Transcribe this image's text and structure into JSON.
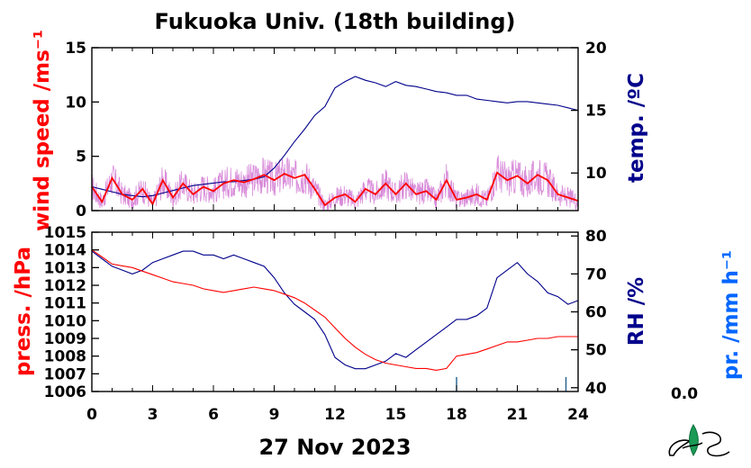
{
  "title": "Fukuoka Univ. (18th building)",
  "date_label": "27 Nov 2023",
  "precip_value": "0.0",
  "colors": {
    "wind": "#ff0000",
    "wind_raw": "#cc66cc",
    "temp": "#00008b",
    "pressure": "#ff0000",
    "rh": "#00008b",
    "precip": "#0066ff"
  },
  "chart_data": [
    {
      "type": "line",
      "x_ticks": [
        "0",
        "3",
        "6",
        "9",
        "12",
        "15",
        "18",
        "21",
        "24"
      ],
      "xlim": [
        0,
        24
      ],
      "left_axis": {
        "label": "wind speed /ms⁻¹",
        "ylim": [
          0,
          15
        ],
        "ticks": [
          "0",
          "5",
          "10",
          "15"
        ]
      },
      "right_axis": {
        "label": "temp. /ºC",
        "ylim": [
          7,
          20
        ],
        "ticks": [
          "10",
          "15",
          "20"
        ]
      },
      "series": [
        {
          "axis": "left",
          "x": [
            0,
            0.5,
            1,
            1.5,
            2,
            2.5,
            3,
            3.5,
            4,
            4.5,
            5,
            5.5,
            6,
            6.5,
            7,
            7.5,
            8,
            8.5,
            9,
            9.5,
            10,
            10.5,
            11,
            11.5,
            12,
            12.5,
            13,
            13.5,
            14,
            14.5,
            15,
            15.5,
            16,
            16.5,
            17,
            17.5,
            18,
            18.5,
            19,
            19.5,
            20,
            20.5,
            21,
            21.5,
            22,
            22.5,
            23,
            23.5,
            24
          ],
          "values": [
            2.2,
            0.8,
            3.0,
            1.5,
            1.0,
            2.0,
            0.6,
            2.8,
            1.2,
            2.5,
            1.5,
            2.2,
            1.8,
            2.5,
            2.8,
            2.6,
            2.9,
            3.3,
            2.8,
            3.4,
            3.0,
            3.3,
            2.0,
            0.5,
            1.2,
            1.5,
            0.8,
            2.0,
            1.5,
            2.5,
            1.5,
            2.5,
            1.5,
            1.8,
            1.0,
            2.8,
            1.0,
            1.2,
            1.5,
            1.0,
            3.5,
            2.8,
            3.2,
            2.5,
            3.3,
            2.8,
            1.5,
            1.2,
            0.9
          ]
        },
        {
          "axis": "right",
          "x": [
            0,
            0.5,
            1,
            1.5,
            2,
            2.5,
            3,
            3.5,
            4,
            4.5,
            5,
            5.5,
            6,
            6.5,
            7,
            7.5,
            8,
            8.5,
            9,
            9.5,
            10,
            10.5,
            11,
            11.5,
            12,
            12.5,
            13,
            13.5,
            14,
            14.5,
            15,
            15.5,
            16,
            16.5,
            17,
            17.5,
            18,
            18.5,
            19,
            19.5,
            20,
            20.5,
            21,
            21.5,
            22,
            22.5,
            23,
            23.5,
            24
          ],
          "values": [
            8.9,
            8.7,
            8.5,
            8.3,
            8.2,
            8.1,
            8.2,
            8.4,
            8.6,
            8.8,
            9.0,
            9.1,
            9.2,
            9.3,
            9.3,
            9.4,
            9.5,
            9.7,
            10.4,
            11.4,
            12.5,
            13.5,
            14.6,
            15.3,
            16.8,
            17.3,
            17.7,
            17.4,
            17.2,
            16.9,
            17.3,
            17.0,
            16.9,
            16.7,
            16.5,
            16.4,
            16.2,
            16.2,
            15.9,
            15.8,
            15.7,
            15.6,
            15.7,
            15.7,
            15.6,
            15.5,
            15.4,
            15.2,
            15.0
          ]
        }
      ]
    },
    {
      "type": "line",
      "x_ticks": [
        "0",
        "3",
        "6",
        "9",
        "12",
        "15",
        "18",
        "21",
        "24"
      ],
      "xlim": [
        0,
        24
      ],
      "left_axis": {
        "label": "press. /hPa",
        "ylim": [
          1006,
          1015
        ],
        "ticks": [
          "1006",
          "1007",
          "1008",
          "1009",
          "1010",
          "1011",
          "1012",
          "1013",
          "1014",
          "1015"
        ]
      },
      "right_axis": {
        "label": "RH /%",
        "ylim": [
          39,
          81
        ],
        "ticks": [
          "40",
          "50",
          "60",
          "70",
          "80"
        ]
      },
      "precip_axis": {
        "label": "pr. /mm h⁻¹"
      },
      "series": [
        {
          "axis": "left",
          "x": [
            0,
            0.5,
            1,
            1.5,
            2,
            2.5,
            3,
            3.5,
            4,
            4.5,
            5,
            5.5,
            6,
            6.5,
            7,
            7.5,
            8,
            8.5,
            9,
            9.5,
            10,
            10.5,
            11,
            11.5,
            12,
            12.5,
            13,
            13.5,
            14,
            14.5,
            15,
            15.5,
            16,
            16.5,
            17,
            17.5,
            18,
            18.5,
            19,
            19.5,
            20,
            20.5,
            21,
            21.5,
            22,
            22.5,
            23,
            23.5,
            24
          ],
          "values": [
            1014.0,
            1013.6,
            1013.2,
            1013.1,
            1013.0,
            1012.8,
            1012.6,
            1012.4,
            1012.2,
            1012.1,
            1012.0,
            1011.8,
            1011.7,
            1011.6,
            1011.7,
            1011.8,
            1011.9,
            1011.8,
            1011.7,
            1011.5,
            1011.3,
            1011.0,
            1010.6,
            1010.2,
            1009.6,
            1009.0,
            1008.5,
            1008.1,
            1007.8,
            1007.6,
            1007.5,
            1007.4,
            1007.3,
            1007.3,
            1007.2,
            1007.3,
            1008.0,
            1008.1,
            1008.2,
            1008.4,
            1008.6,
            1008.8,
            1008.8,
            1008.9,
            1009.0,
            1009.0,
            1009.1,
            1009.1,
            1009.1
          ]
        },
        {
          "axis": "right",
          "x": [
            0,
            0.5,
            1,
            1.5,
            2,
            2.5,
            3,
            3.5,
            4,
            4.5,
            5,
            5.5,
            6,
            6.5,
            7,
            7.5,
            8,
            8.5,
            9,
            9.5,
            10,
            10.5,
            11,
            11.5,
            12,
            12.5,
            13,
            13.5,
            14,
            14.5,
            15,
            15.5,
            16,
            16.5,
            17,
            17.5,
            18,
            18.5,
            19,
            19.5,
            20,
            20.5,
            21,
            21.5,
            22,
            22.5,
            23,
            23.5,
            24
          ],
          "values": [
            76,
            74,
            72,
            71,
            70,
            71,
            73,
            74,
            75,
            76,
            76,
            75,
            75,
            74,
            75,
            74,
            73,
            72,
            69,
            65,
            62,
            60,
            58,
            54,
            48,
            46,
            45,
            45,
            46,
            47,
            49,
            48,
            50,
            52,
            54,
            56,
            58,
            58,
            59,
            61,
            69,
            71,
            73,
            70,
            68,
            65,
            64,
            62,
            63
          ]
        }
      ]
    }
  ]
}
